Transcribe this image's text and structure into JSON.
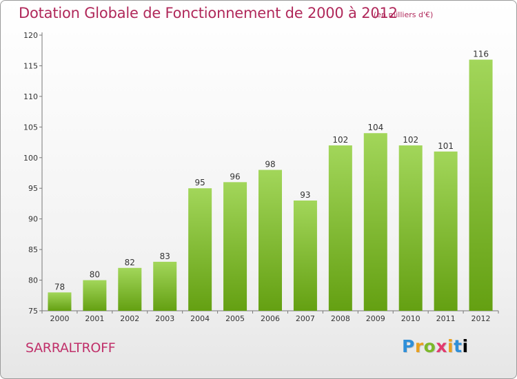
{
  "chart_data": {
    "type": "bar",
    "title": "Dotation Globale de Fonctionnement de 2000 à 2012",
    "subtitle": "(en milliers d'€)",
    "categories": [
      "2000",
      "2001",
      "2002",
      "2003",
      "2004",
      "2005",
      "2006",
      "2007",
      "2008",
      "2009",
      "2010",
      "2011",
      "2012"
    ],
    "values": [
      78,
      80,
      82,
      83,
      95,
      96,
      98,
      93,
      102,
      104,
      102,
      101,
      116
    ],
    "ylim": [
      75,
      120
    ],
    "yticks": [
      75,
      80,
      85,
      90,
      95,
      100,
      105,
      110,
      115,
      120
    ],
    "grid": false,
    "bar_color": "#8cc63f"
  },
  "footer": {
    "city": "SARRALTROFF",
    "logo_letters": [
      "P",
      "r",
      "o",
      "x",
      "i",
      "t",
      "i"
    ]
  }
}
